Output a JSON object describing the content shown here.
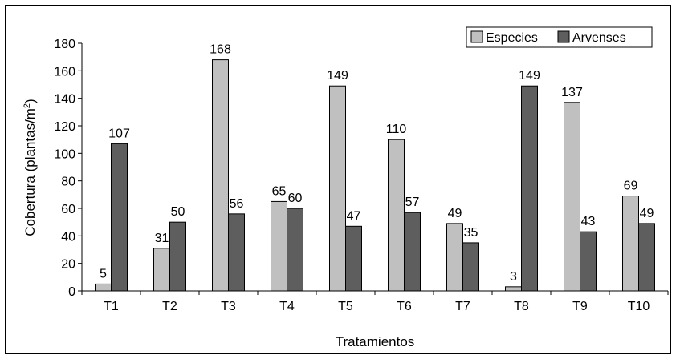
{
  "chart_data": {
    "type": "bar",
    "title": "",
    "xlabel": "Tratamientos",
    "ylabel": "Cobertura (plantas/m",
    "ylabel_sup": "2",
    "ylabel_end": ")",
    "ylim": [
      0,
      180
    ],
    "yticks": [
      "0",
      "20",
      "40",
      "60",
      "80",
      "100",
      "120",
      "140",
      "160",
      "180"
    ],
    "categories": [
      "T1",
      "T2",
      "T3",
      "T4",
      "T5",
      "T6",
      "T7",
      "T8",
      "T9",
      "T10"
    ],
    "grid": false,
    "legend_position": "top-right",
    "series": [
      {
        "name": "Especies",
        "color": "#c0c0c0",
        "values": [
          5,
          31,
          168,
          65,
          149,
          110,
          49,
          3,
          137,
          69
        ]
      },
      {
        "name": "Arvenses",
        "color": "#5e5e5e",
        "values": [
          107,
          50,
          56,
          60,
          47,
          57,
          35,
          149,
          43,
          49
        ]
      }
    ]
  }
}
